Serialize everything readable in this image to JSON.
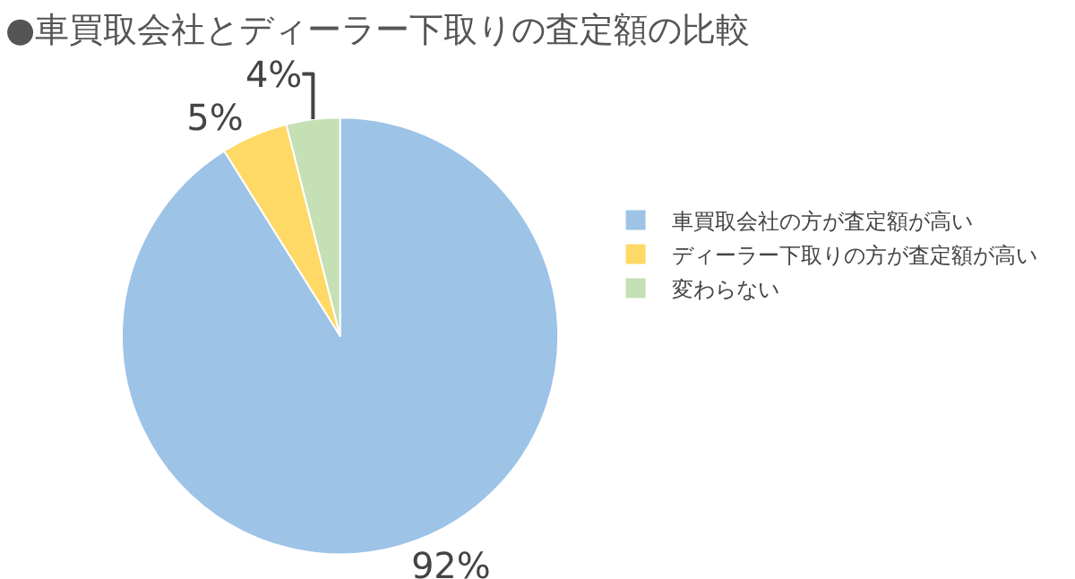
{
  "chart_data": {
    "type": "pie",
    "title": "●車買取会社とディーラー下取りの査定額の比較",
    "categories": [
      "車買取会社の方が査定額が高い",
      "ディーラー下取りの方が査定額が高い",
      "変わらない"
    ],
    "values": [
      92,
      5,
      4
    ],
    "colors": [
      "#9dc3e6",
      "#ffd966",
      "#c5e0b4"
    ],
    "value_labels": [
      "92%",
      "5%",
      "4%"
    ],
    "legend": "right"
  }
}
